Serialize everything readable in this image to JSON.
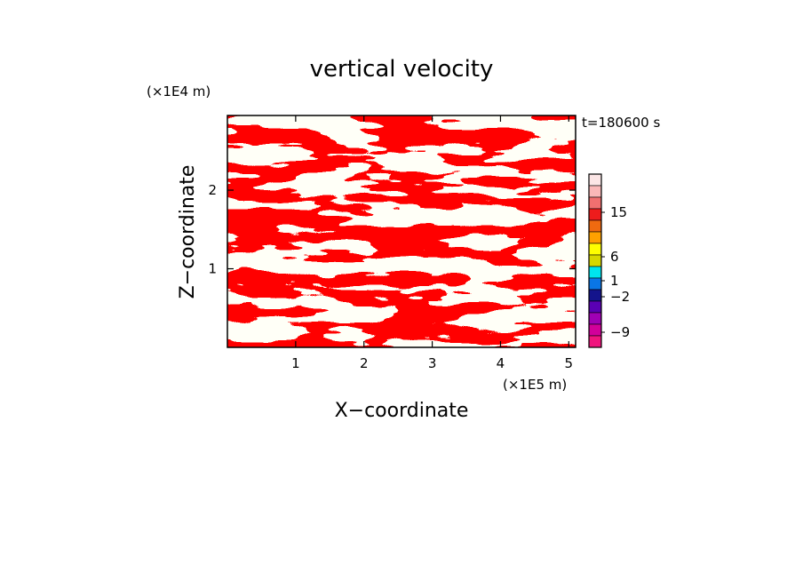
{
  "chart_data": {
    "type": "heatmap",
    "title": "vertical velocity",
    "xlabel": "X−coordinate",
    "ylabel": "Z−coordinate",
    "x_scale_label": "(×1E5 m)",
    "y_scale_label": "(×1E4 m)",
    "time_label": "t=180600 s",
    "xlim": [
      0,
      5.1
    ],
    "ylim": [
      0,
      2.95
    ],
    "x_ticks": [
      1,
      2,
      3,
      4,
      5
    ],
    "x_tick_labels": [
      "1",
      "2",
      "3",
      "4",
      "5"
    ],
    "y_ticks": [
      1,
      2
    ],
    "y_tick_labels": [
      "1",
      "2"
    ],
    "field_colors": {
      "positive": "#ffff00",
      "negative": "#00e5ee"
    },
    "colorbar": {
      "labels": [
        "15",
        "6",
        "1",
        "−2",
        "−9"
      ],
      "label_levels": [
        15,
        6,
        1,
        -2,
        -9
      ],
      "bands": [
        {
          "color": "#fce6e6"
        },
        {
          "color": "#fab8b8"
        },
        {
          "color": "#f07070"
        },
        {
          "color": "#ee1c1c"
        },
        {
          "color": "#f06a10"
        },
        {
          "color": "#ffa000"
        },
        {
          "color": "#ffff00"
        },
        {
          "color": "#d8d800"
        },
        {
          "color": "#00e5ee"
        },
        {
          "color": "#0a76e6"
        },
        {
          "color": "#14148c"
        },
        {
          "color": "#5a00b4"
        },
        {
          "color": "#a000b4"
        },
        {
          "color": "#d2009a"
        },
        {
          "color": "#f0147e"
        }
      ]
    }
  }
}
